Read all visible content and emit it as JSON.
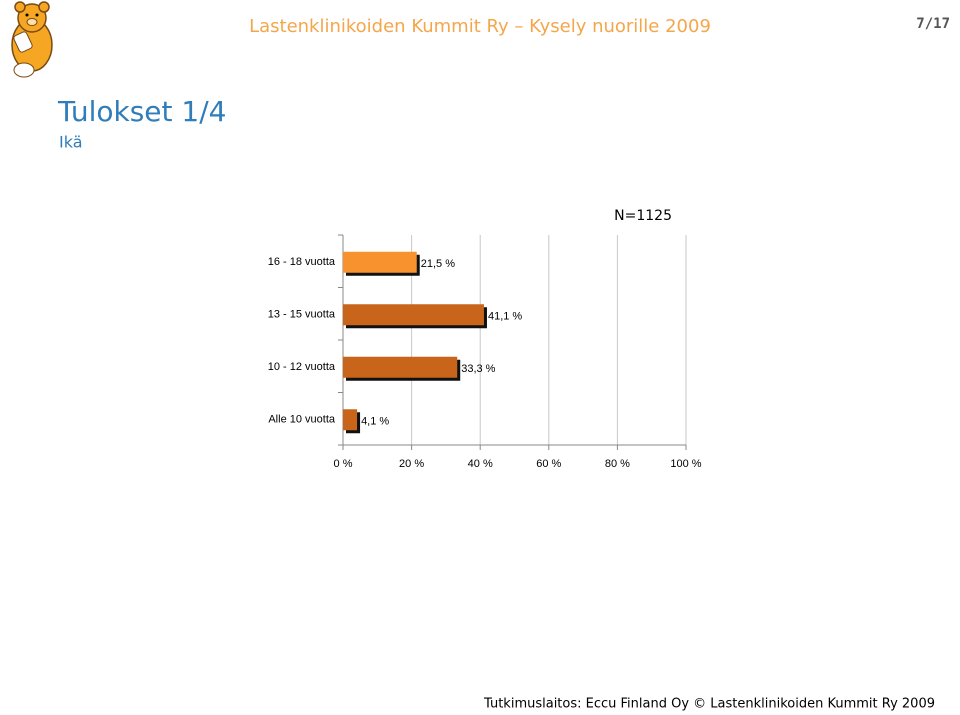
{
  "header": {
    "title": "Lastenklinikoiden Kummit Ry – Kysely nuorille 2009",
    "page": "7/17"
  },
  "slide": {
    "title": "Tulokset 1/4",
    "subtitle": "Ikä"
  },
  "footer": "Tutkimuslaitos: Eccu Finland Oy © Lastenklinikoiden Kummit Ry 2009",
  "chart_data": {
    "type": "barh",
    "annotation": "N=1125",
    "categories": [
      "16 - 18 vuotta",
      "13 - 15 vuotta",
      "10 - 12 vuotta",
      "Alle 10 vuotta"
    ],
    "values": [
      21.5,
      41.1,
      33.3,
      4.1
    ],
    "value_labels": [
      "21,5 %",
      "41,1 %",
      "33,3 %",
      "4,1 %"
    ],
    "colors": [
      "#f7922e",
      "#c8651b",
      "#c8651b",
      "#c8651b"
    ],
    "xlim": [
      0,
      100
    ],
    "xticks": [
      {
        "value": 0,
        "label": "0 %"
      },
      {
        "value": 20,
        "label": "20 %"
      },
      {
        "value": 40,
        "label": "40 %"
      },
      {
        "value": 60,
        "label": "60 %"
      },
      {
        "value": 80,
        "label": "80 %"
      },
      {
        "value": 100,
        "label": "100 %"
      }
    ],
    "grid": true
  }
}
